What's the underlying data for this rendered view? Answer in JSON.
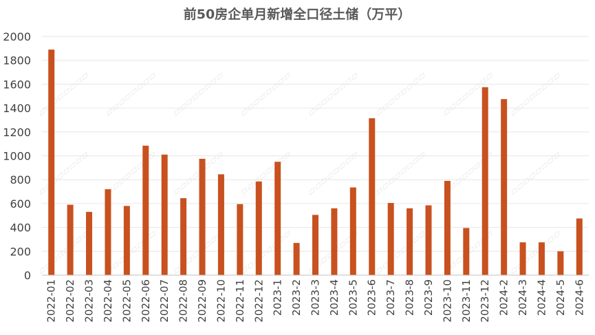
{
  "chart_data": {
    "type": "bar",
    "title": "前50房企单月新增全口径土储（万平）",
    "xlabel": "",
    "ylabel": "",
    "ylim": [
      0,
      2000
    ],
    "yticks": [
      0,
      200,
      400,
      600,
      800,
      1000,
      1200,
      1400,
      1600,
      1800,
      2000
    ],
    "grid": true,
    "legend": "none",
    "bar_color": "#c8511f",
    "categories": [
      "2022-01",
      "2022-02",
      "2022-03",
      "2022-04",
      "2022-05",
      "2022-06",
      "2022-07",
      "2022-08",
      "2022-09",
      "2022-10",
      "2022-11",
      "2022-12",
      "2023-1",
      "2023-2",
      "2023-3",
      "2023-4",
      "2023-5",
      "2023-6",
      "2023-7",
      "2023-8",
      "2023-9",
      "2023-10",
      "2023-11",
      "2023-12",
      "2024-2",
      "2024-3",
      "2024-4",
      "2024-5",
      "2024-6"
    ],
    "values": [
      1890,
      590,
      530,
      720,
      580,
      1085,
      1010,
      645,
      975,
      845,
      595,
      785,
      950,
      270,
      505,
      560,
      735,
      1315,
      605,
      560,
      585,
      790,
      395,
      1575,
      1475,
      275,
      275,
      200,
      475
    ]
  }
}
